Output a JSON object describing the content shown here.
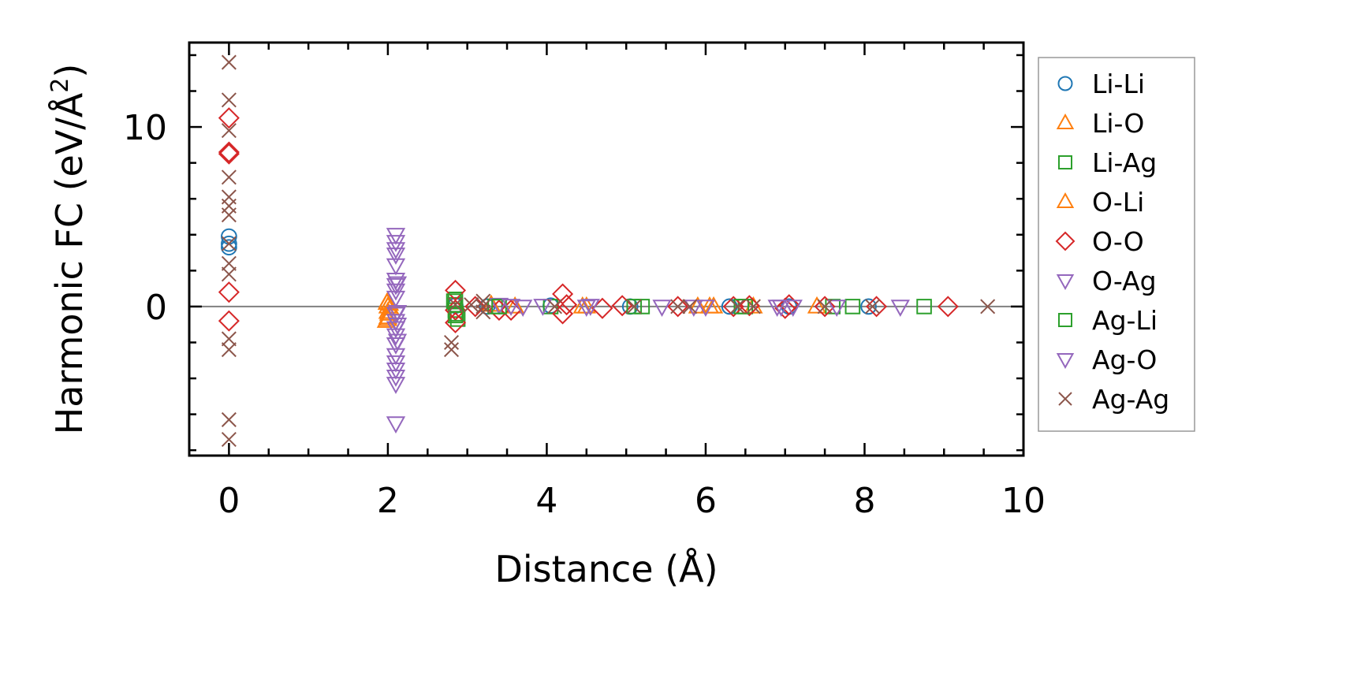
{
  "chart_data": {
    "type": "scatter",
    "title": "",
    "xlabel": "Distance (Å)",
    "ylabel": "Harmonic FC (eV/Å",
    "ylabel_sup": "2",
    "ylabel_close": ")",
    "xlim": [
      -0.5,
      10
    ],
    "ylim": [
      -8.3,
      14.7
    ],
    "xticks": [
      0,
      2,
      4,
      6,
      8,
      10
    ],
    "xtick_labels": [
      "0",
      "2",
      "4",
      "6",
      "8",
      "10"
    ],
    "yticks": [
      0,
      10
    ],
    "ytick_labels": [
      "0",
      "10"
    ],
    "x_minor_step": 0.5,
    "y_minor_step": 2,
    "zero_line": true,
    "legend_position": "outside right",
    "series": [
      {
        "name": "Li-Li",
        "marker": "circle",
        "color": "#1f77b4",
        "points": [
          [
            0,
            3.9
          ],
          [
            0,
            3.5
          ],
          [
            0,
            3.3
          ],
          [
            2.85,
            0.05
          ],
          [
            3.25,
            0.0
          ],
          [
            4.05,
            0.05
          ],
          [
            5.05,
            0.0
          ],
          [
            6.3,
            0.0
          ],
          [
            7.05,
            0.0
          ],
          [
            8.05,
            0.0
          ]
        ]
      },
      {
        "name": "Li-O",
        "marker": "triangle-up",
        "color": "#ff7f0e",
        "points": [
          [
            2.0,
            0.3
          ],
          [
            2.0,
            0.0
          ],
          [
            2.0,
            -0.3
          ],
          [
            2.0,
            -0.6
          ],
          [
            1.98,
            -0.8
          ],
          [
            2.03,
            -0.1
          ],
          [
            2.02,
            0.15
          ],
          [
            3.3,
            0.1
          ],
          [
            3.6,
            0.0
          ],
          [
            4.5,
            0.0
          ],
          [
            5.9,
            0.0
          ],
          [
            6.1,
            0.0
          ],
          [
            6.6,
            0.0
          ],
          [
            7.4,
            0.0
          ]
        ]
      },
      {
        "name": "Li-Ag",
        "marker": "square",
        "color": "#2ca02c",
        "points": [
          [
            2.85,
            0.4
          ],
          [
            2.85,
            0.1
          ],
          [
            2.85,
            -0.2
          ],
          [
            2.85,
            -0.5
          ],
          [
            2.88,
            -0.7
          ],
          [
            3.35,
            0.0
          ],
          [
            4.05,
            0.0
          ],
          [
            5.2,
            0.0
          ],
          [
            6.5,
            0.0
          ],
          [
            7.6,
            0.0
          ],
          [
            7.85,
            0.0
          ],
          [
            8.75,
            0.0
          ]
        ]
      },
      {
        "name": "O-Li",
        "marker": "triangle-up",
        "color": "#ff7f0e",
        "points": [
          [
            1.99,
            0.2
          ],
          [
            2.01,
            -0.4
          ],
          [
            2.0,
            -0.7
          ],
          [
            4.45,
            0.0
          ],
          [
            6.05,
            0.0
          ]
        ]
      },
      {
        "name": "O-O",
        "marker": "diamond",
        "color": "#d62728",
        "points": [
          [
            0,
            10.5
          ],
          [
            0,
            8.6
          ],
          [
            0,
            8.5
          ],
          [
            0,
            0.8
          ],
          [
            0,
            -0.8
          ],
          [
            2.85,
            0.9
          ],
          [
            2.85,
            -0.2
          ],
          [
            2.85,
            -0.9
          ],
          [
            3.1,
            0.0
          ],
          [
            3.4,
            -0.2
          ],
          [
            3.55,
            -0.2
          ],
          [
            4.2,
            0.7
          ],
          [
            4.2,
            -0.4
          ],
          [
            4.25,
            0.1
          ],
          [
            4.7,
            -0.1
          ],
          [
            4.95,
            0.05
          ],
          [
            5.65,
            0.0
          ],
          [
            6.35,
            0.0
          ],
          [
            6.55,
            0.05
          ],
          [
            7.0,
            -0.1
          ],
          [
            7.05,
            0.1
          ],
          [
            7.5,
            0.0
          ],
          [
            8.15,
            0.0
          ],
          [
            9.05,
            0.0
          ]
        ]
      },
      {
        "name": "O-Ag",
        "marker": "triangle-down",
        "color": "#9467bd",
        "points": [
          [
            2.1,
            4.0
          ],
          [
            2.1,
            3.6
          ],
          [
            2.1,
            3.2
          ],
          [
            2.1,
            2.9
          ],
          [
            2.1,
            2.3
          ],
          [
            2.1,
            1.5
          ],
          [
            2.1,
            1.2
          ],
          [
            2.1,
            0.9
          ],
          [
            2.1,
            0.5
          ],
          [
            2.1,
            -0.4
          ],
          [
            2.1,
            -0.8
          ],
          [
            2.1,
            -1.2
          ],
          [
            2.1,
            -1.6
          ],
          [
            2.1,
            -2.1
          ],
          [
            2.1,
            -2.7
          ],
          [
            2.1,
            -3.1
          ],
          [
            2.1,
            -3.5
          ],
          [
            2.1,
            -3.9
          ],
          [
            2.1,
            -4.3
          ],
          [
            2.1,
            -6.5
          ],
          [
            3.4,
            0.1
          ],
          [
            3.7,
            0.0
          ],
          [
            3.95,
            0.05
          ],
          [
            4.5,
            0.0
          ],
          [
            5.45,
            0.0
          ],
          [
            6.0,
            0.0
          ],
          [
            6.9,
            0.0
          ],
          [
            7.1,
            0.0
          ],
          [
            7.65,
            0.0
          ],
          [
            8.45,
            0.0
          ]
        ]
      },
      {
        "name": "Ag-Li",
        "marker": "square",
        "color": "#2ca02c",
        "points": [
          [
            2.83,
            0.3
          ],
          [
            2.86,
            -0.4
          ],
          [
            3.4,
            0.0
          ],
          [
            5.1,
            0.0
          ],
          [
            6.45,
            0.0
          ]
        ]
      },
      {
        "name": "Ag-O",
        "marker": "triangle-down",
        "color": "#9467bd",
        "points": [
          [
            2.12,
            1.3
          ],
          [
            2.12,
            -0.3
          ],
          [
            2.12,
            -1.0
          ],
          [
            2.12,
            -1.9
          ],
          [
            3.55,
            0.05
          ],
          [
            4.55,
            0.05
          ],
          [
            5.85,
            0.0
          ],
          [
            6.95,
            0.0
          ]
        ]
      },
      {
        "name": "Ag-Ag",
        "marker": "x",
        "color": "#8c564b",
        "points": [
          [
            0,
            13.6
          ],
          [
            0,
            11.5
          ],
          [
            0,
            9.8
          ],
          [
            0,
            7.2
          ],
          [
            0,
            6.1
          ],
          [
            0,
            5.6
          ],
          [
            0,
            5.1
          ],
          [
            0,
            3.5
          ],
          [
            0,
            2.4
          ],
          [
            0,
            1.8
          ],
          [
            0,
            -1.8
          ],
          [
            0,
            -2.4
          ],
          [
            0,
            -6.3
          ],
          [
            0,
            -7.4
          ],
          [
            2.8,
            -2.0
          ],
          [
            2.8,
            -2.4
          ],
          [
            2.85,
            0.1
          ],
          [
            3.2,
            0.3
          ],
          [
            3.2,
            0.0
          ],
          [
            3.2,
            -0.3
          ],
          [
            3.05,
            0.1
          ],
          [
            4.1,
            0.0
          ],
          [
            5.1,
            0.0
          ],
          [
            5.65,
            0.0
          ],
          [
            5.8,
            0.0
          ],
          [
            6.4,
            0.0
          ],
          [
            6.6,
            0.0
          ],
          [
            7.5,
            0.0
          ],
          [
            8.1,
            0.0
          ],
          [
            9.55,
            0.0
          ]
        ]
      }
    ]
  }
}
